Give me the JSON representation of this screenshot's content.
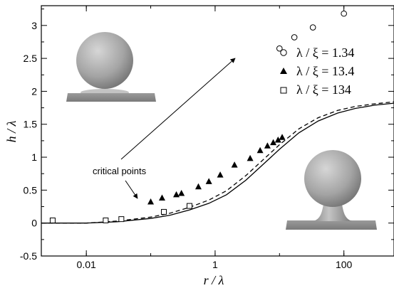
{
  "chart_data": {
    "type": "scatter",
    "title": "",
    "xlabel": "r / λ",
    "ylabel": "h / λ",
    "xscale": "log",
    "xlim": [
      0.002,
      600
    ],
    "ylim": [
      -0.5,
      3.3
    ],
    "x_ticks": [
      0.01,
      1,
      100
    ],
    "x_tick_labels": [
      "0.01",
      "1",
      "100"
    ],
    "y_ticks": [
      -0.5,
      0,
      0.5,
      1,
      1.5,
      2,
      2.5,
      3
    ],
    "y_tick_labels": [
      "-0.5",
      "0",
      "0.5",
      "1",
      "1.5",
      "2",
      "2.5",
      "3"
    ],
    "grid": false,
    "legend_position": "top-right",
    "series": [
      {
        "name": "λ / ξ = 1.34",
        "marker": "open-circle",
        "points": [
          [
            10,
            2.65
          ],
          [
            17,
            2.82
          ],
          [
            33,
            2.97
          ],
          [
            100,
            3.18
          ]
        ]
      },
      {
        "name": "λ / ξ = 13.4",
        "marker": "filled-triangle",
        "points": [
          [
            0.1,
            0.32
          ],
          [
            0.15,
            0.38
          ],
          [
            0.25,
            0.43
          ],
          [
            0.3,
            0.45
          ],
          [
            0.55,
            0.55
          ],
          [
            0.8,
            0.63
          ],
          [
            1.2,
            0.73
          ],
          [
            2.0,
            0.88
          ],
          [
            3.5,
            0.98
          ],
          [
            5.0,
            1.1
          ],
          [
            6.5,
            1.17
          ],
          [
            8.0,
            1.22
          ],
          [
            9.5,
            1.26
          ],
          [
            11,
            1.3
          ]
        ]
      },
      {
        "name": "λ / ξ = 134",
        "marker": "open-square",
        "points": [
          [
            0.003,
            0.04
          ],
          [
            0.02,
            0.04
          ],
          [
            0.035,
            0.06
          ],
          [
            0.16,
            0.17
          ],
          [
            0.4,
            0.26
          ]
        ]
      },
      {
        "name": "",
        "style": "solid-line",
        "x": [
          0.002,
          0.01,
          0.03,
          0.1,
          0.2,
          0.4,
          0.8,
          1.5,
          3,
          6,
          10,
          20,
          40,
          80,
          150,
          300,
          600
        ],
        "y": [
          0.0,
          0.0,
          0.02,
          0.07,
          0.12,
          0.2,
          0.3,
          0.43,
          0.65,
          0.92,
          1.12,
          1.37,
          1.55,
          1.67,
          1.74,
          1.79,
          1.82
        ]
      },
      {
        "name": "",
        "style": "dashed-line",
        "x": [
          0.002,
          0.01,
          0.03,
          0.1,
          0.2,
          0.4,
          0.8,
          1.5,
          3,
          6,
          10,
          20,
          40,
          80,
          150,
          300,
          600
        ],
        "y": [
          0.0,
          0.0,
          0.03,
          0.09,
          0.15,
          0.24,
          0.35,
          0.49,
          0.72,
          0.99,
          1.19,
          1.43,
          1.6,
          1.71,
          1.77,
          1.81,
          1.84
        ]
      }
    ],
    "annotations": [
      {
        "text": "critical points"
      }
    ]
  },
  "colors": {
    "axis": "#000000",
    "sphere": "#a6a6a6",
    "substrate": "#8a8a8a"
  }
}
